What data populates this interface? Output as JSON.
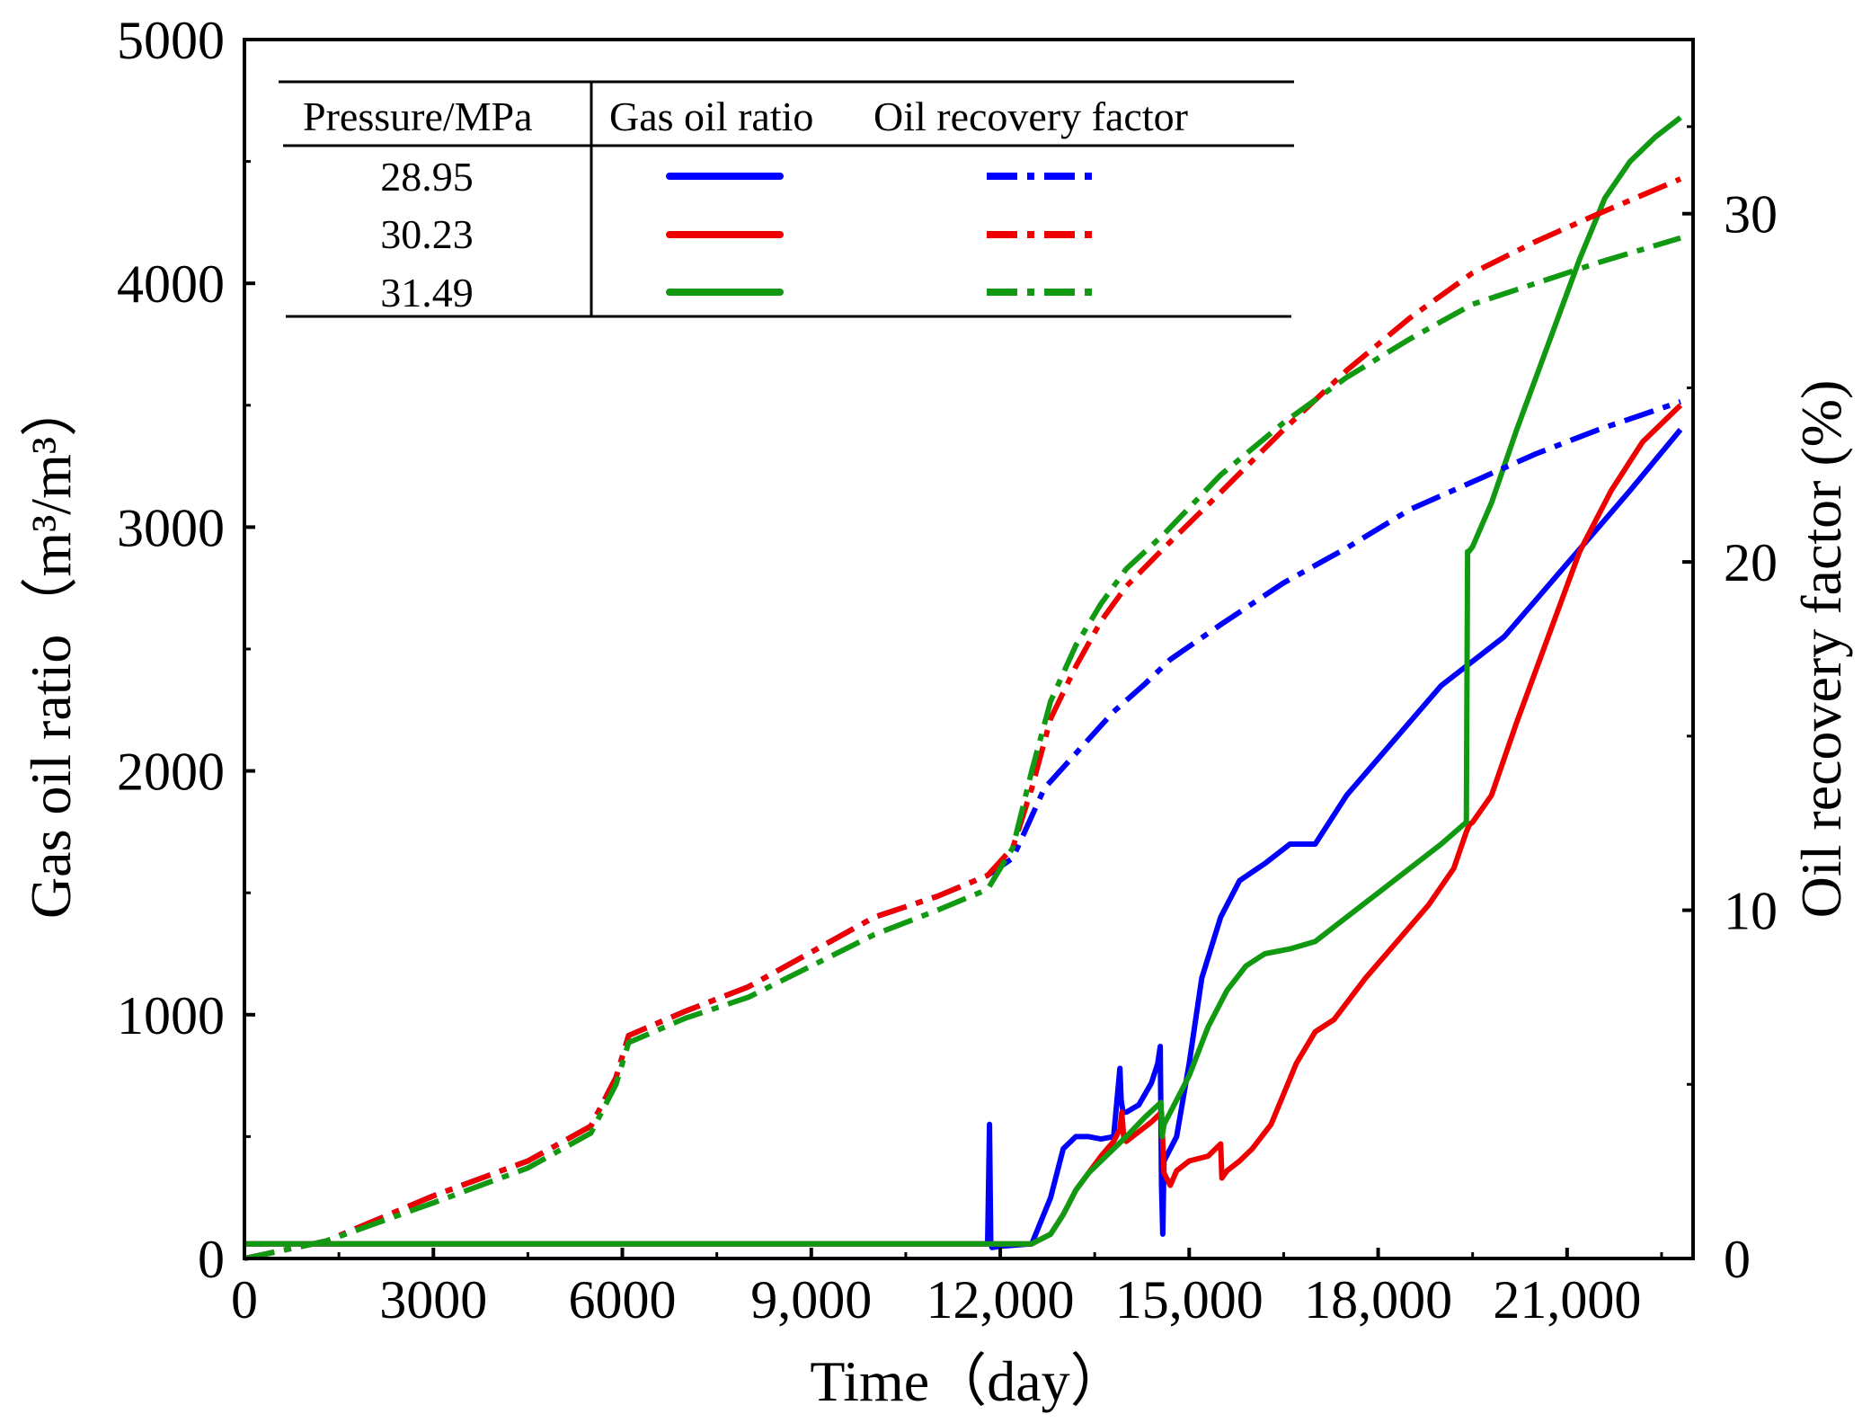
{
  "chart_data": {
    "type": "line",
    "xlabel": "Time（day）",
    "ylabel_left": "Gas oil ratio（m³/m³）",
    "ylabel_right": "Oil recovery factor (%)",
    "xlim": [
      0,
      23000
    ],
    "ylim_left": [
      0,
      5000
    ],
    "ylim_right": [
      0,
      35
    ],
    "x_ticks": [
      {
        "value": 0,
        "label": "0"
      },
      {
        "value": 3000,
        "label": "3000"
      },
      {
        "value": 6000,
        "label": "6000"
      },
      {
        "value": 9000,
        "label": "9,000"
      },
      {
        "value": 12000,
        "label": "12,000"
      },
      {
        "value": 15000,
        "label": "15,000"
      },
      {
        "value": 18000,
        "label": "18,000"
      },
      {
        "value": 21000,
        "label": "21,000"
      }
    ],
    "y_left_ticks": [
      {
        "value": 0,
        "label": "0"
      },
      {
        "value": 1000,
        "label": "1000"
      },
      {
        "value": 2000,
        "label": "2000"
      },
      {
        "value": 3000,
        "label": "3000"
      },
      {
        "value": 4000,
        "label": "4000"
      },
      {
        "value": 5000,
        "label": "5000"
      }
    ],
    "y_right_ticks": [
      {
        "value": 0,
        "label": "0"
      },
      {
        "value": 10,
        "label": "10"
      },
      {
        "value": 20,
        "label": "20"
      },
      {
        "value": 30,
        "label": "30"
      }
    ],
    "legend": {
      "header_pressure": "Pressure/MPa",
      "header_gor": "Gas oil ratio",
      "header_recovery": "Oil recovery factor",
      "rows": [
        {
          "pressure": "28.95",
          "color": "#0000ff"
        },
        {
          "pressure": "30.23",
          "color": "#ee0000"
        },
        {
          "pressure": "31.49",
          "color": "#119911"
        }
      ]
    },
    "series": [
      {
        "name": "Gas oil ratio 28.95",
        "axis": "left",
        "style": "solid",
        "color": "#0000ff",
        "x": [
          0,
          11800,
          11830,
          11850,
          11870,
          12000,
          12500,
          12800,
          13000,
          13200,
          13400,
          13600,
          13800,
          13900,
          13920,
          13950,
          14000,
          14200,
          14400,
          14500,
          14540,
          14560,
          14580,
          14600,
          14800,
          15000,
          15200,
          15500,
          15800,
          16200,
          16600,
          17000,
          17500,
          18000,
          18500,
          19000,
          19500,
          20000,
          20500,
          21000,
          21500,
          22000,
          22800
        ],
        "y": [
          60,
          60,
          550,
          60,
          45,
          50,
          60,
          250,
          450,
          500,
          500,
          490,
          500,
          780,
          650,
          600,
          600,
          630,
          720,
          800,
          870,
          300,
          100,
          400,
          500,
          800,
          1150,
          1400,
          1550,
          1620,
          1700,
          1700,
          1900,
          2050,
          2200,
          2350,
          2450,
          2550,
          2700,
          2850,
          3000,
          3150,
          3400
        ]
      },
      {
        "name": "Gas oil ratio 30.23",
        "axis": "left",
        "style": "solid",
        "color": "#ee0000",
        "x": [
          0,
          12000,
          12500,
          12800,
          13000,
          13200,
          13400,
          13600,
          13800,
          13900,
          13930,
          13960,
          14000,
          14200,
          14400,
          14560,
          14600,
          14700,
          14800,
          15000,
          15300,
          15500,
          15520,
          15600,
          15800,
          16000,
          16300,
          16700,
          17000,
          17300,
          17800,
          18300,
          18800,
          19200,
          19400,
          19450,
          19500,
          19800,
          20200,
          20700,
          21200,
          21700,
          22200,
          22800
        ],
        "y": [
          60,
          60,
          60,
          100,
          180,
          280,
          350,
          420,
          480,
          530,
          600,
          500,
          480,
          520,
          560,
          600,
          350,
          300,
          360,
          400,
          420,
          470,
          330,
          360,
          400,
          450,
          550,
          800,
          930,
          980,
          1150,
          1300,
          1450,
          1600,
          1750,
          1780,
          1790,
          1900,
          2200,
          2550,
          2900,
          3150,
          3350,
          3500
        ]
      },
      {
        "name": "Gas oil ratio 31.49",
        "axis": "left",
        "style": "solid",
        "color": "#119911",
        "x": [
          0,
          12000,
          12500,
          12800,
          13000,
          13200,
          13400,
          13600,
          13800,
          14000,
          14300,
          14550,
          14570,
          14600,
          14700,
          15000,
          15300,
          15600,
          15900,
          16200,
          16600,
          17000,
          17500,
          18000,
          18500,
          19000,
          19400,
          19420,
          19440,
          19500,
          19800,
          20200,
          20700,
          21200,
          21600,
          22000,
          22400,
          22800
        ],
        "y": [
          60,
          60,
          60,
          100,
          180,
          280,
          350,
          400,
          450,
          500,
          580,
          640,
          500,
          550,
          600,
          750,
          950,
          1100,
          1200,
          1250,
          1270,
          1300,
          1400,
          1500,
          1600,
          1700,
          1790,
          2900,
          2900,
          2920,
          3100,
          3400,
          3750,
          4100,
          4350,
          4500,
          4600,
          4680
        ]
      },
      {
        "name": "Oil recovery factor 28.95",
        "axis": "right",
        "style": "dashdot",
        "color": "#0000ff",
        "x": [
          0,
          1300,
          3000,
          4500,
          5500,
          5900,
          6100,
          7000,
          8000,
          9000,
          10000,
          11000,
          11800,
          12200,
          12700,
          13200,
          13800,
          14300,
          14700,
          15500,
          16500,
          17500,
          18500,
          19500,
          20500,
          21500,
          22800
        ],
        "y": [
          0,
          0.5,
          1.8,
          2.8,
          3.8,
          5.2,
          6.4,
          7.1,
          7.8,
          8.8,
          9.8,
          10.4,
          11.0,
          11.5,
          13.5,
          14.5,
          15.7,
          16.5,
          17.2,
          18.2,
          19.4,
          20.4,
          21.5,
          22.3,
          23.1,
          23.8,
          24.6
        ]
      },
      {
        "name": "Oil recovery factor 30.23",
        "axis": "right",
        "style": "dashdot",
        "color": "#ee0000",
        "x": [
          0,
          1300,
          3000,
          4500,
          5500,
          5900,
          6100,
          7000,
          8000,
          9000,
          10000,
          11000,
          11800,
          12200,
          12500,
          12800,
          13200,
          13600,
          14000,
          14600,
          15500,
          16500,
          17500,
          18500,
          19500,
          20500,
          21500,
          22800
        ],
        "y": [
          0,
          0.5,
          1.8,
          2.8,
          3.8,
          5.2,
          6.4,
          7.1,
          7.8,
          8.8,
          9.8,
          10.4,
          11.0,
          11.8,
          13.5,
          15.5,
          17.0,
          18.3,
          19.3,
          20.4,
          22.0,
          23.8,
          25.5,
          27.0,
          28.3,
          29.2,
          30.0,
          31.0
        ]
      },
      {
        "name": "Oil recovery factor 31.49",
        "axis": "right",
        "style": "dashdot",
        "color": "#119911",
        "x": [
          0,
          1300,
          3000,
          4500,
          5500,
          5900,
          6100,
          7000,
          8000,
          9000,
          10000,
          11000,
          11800,
          12200,
          12500,
          12800,
          13200,
          13600,
          14000,
          14600,
          15500,
          16500,
          17500,
          18500,
          19500,
          20500,
          21500,
          22800
        ],
        "y": [
          0,
          0.5,
          1.6,
          2.6,
          3.6,
          5.0,
          6.2,
          6.9,
          7.5,
          8.4,
          9.3,
          10.0,
          10.6,
          11.8,
          14.0,
          16.0,
          17.6,
          18.8,
          19.8,
          20.8,
          22.5,
          24.0,
          25.3,
          26.4,
          27.4,
          28.0,
          28.6,
          29.3
        ]
      }
    ]
  }
}
